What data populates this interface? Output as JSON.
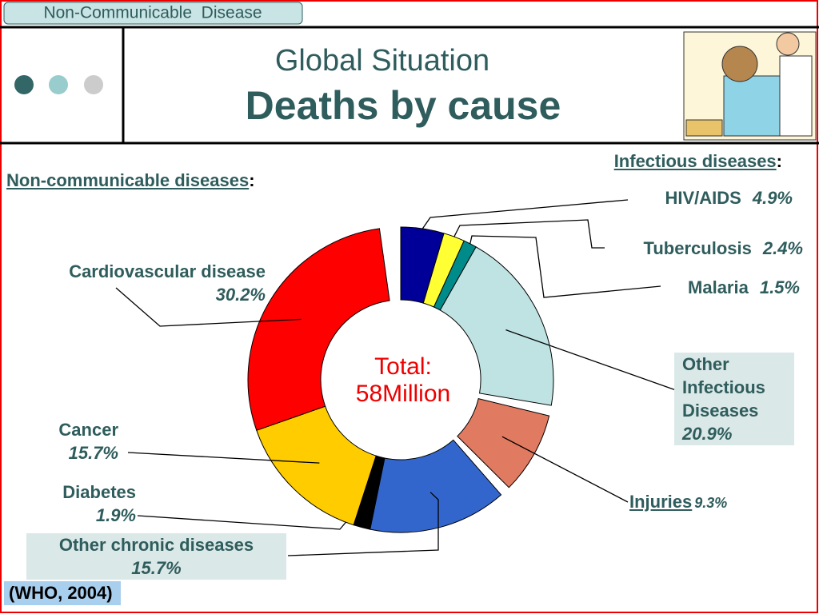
{
  "header": {
    "tag": "Non-Communicable  Disease",
    "title": "Global Situation",
    "subtitle": "Deaths by cause"
  },
  "chart_data": {
    "type": "donut",
    "center_label": [
      "Total:",
      "58Million"
    ],
    "categories": [
      "HIV/AIDS",
      "Tuberculosis",
      "Malaria",
      "Other Infectious Diseases",
      "Injuries",
      "Other chronic diseases",
      "Diabetes",
      "Cancer",
      "Cardiovascular disease"
    ],
    "values": [
      4.9,
      2.4,
      1.5,
      20.9,
      9.3,
      15.7,
      1.9,
      15.7,
      30.2
    ],
    "value_labels": [
      "4.9%",
      "2.4%",
      "1.5%",
      "20.9%",
      "9.3%",
      "15.7%",
      "1.9%",
      "15.7%",
      "30.2%"
    ],
    "colors": [
      "#000099",
      "#ffff33",
      "#008b8b",
      "#bfe3e3",
      "#e07a60",
      "#3366cc",
      "#000000",
      "#ffcc00",
      "#ff0000"
    ],
    "groups": [
      "Infectious diseases",
      "Non-communicable diseases"
    ],
    "heading_suffix": ":"
  },
  "source": "(WHO, 2004)"
}
